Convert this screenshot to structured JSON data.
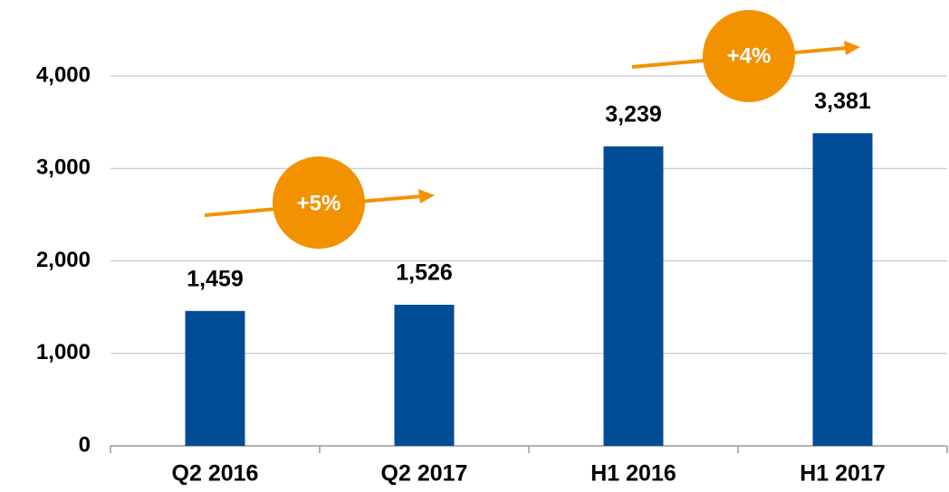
{
  "chart_data": {
    "type": "bar",
    "categories": [
      "Q2 2016",
      "Q2 2017",
      "H1 2016",
      "H1 2017"
    ],
    "values": [
      1459,
      1526,
      3239,
      3381
    ],
    "value_labels": [
      "1,459",
      "1,526",
      "3,239",
      "3,381"
    ],
    "color": "#004c97",
    "ylim": [
      0,
      4000
    ],
    "yticks": [
      0,
      {
        "value": 1000,
        "label": "1,000"
      },
      {
        "value": 2000,
        "label": "2,000"
      },
      {
        "value": 3000,
        "label": "3,000"
      },
      {
        "value": 4000,
        "label": "4,000"
      }
    ],
    "grid": true,
    "annotations": [
      "+5%",
      "+4%"
    ]
  }
}
